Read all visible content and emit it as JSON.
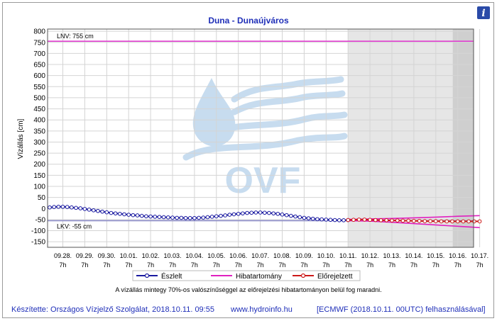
{
  "chart_data": {
    "type": "line",
    "title": "Duna - Dunaújváros",
    "ylabel": "Vízállás [cm]",
    "ylim": [
      -175,
      810
    ],
    "yticks": [
      800,
      750,
      700,
      650,
      600,
      550,
      500,
      450,
      400,
      350,
      300,
      250,
      200,
      150,
      100,
      50,
      0,
      -50,
      -100,
      -150
    ],
    "xticks": [
      {
        "day": "09.28.",
        "hour": "7h"
      },
      {
        "day": "09.29.",
        "hour": "7h"
      },
      {
        "day": "09.30.",
        "hour": "7h"
      },
      {
        "day": "10.01.",
        "hour": "7h"
      },
      {
        "day": "10.02.",
        "hour": "7h"
      },
      {
        "day": "10.03.",
        "hour": "7h"
      },
      {
        "day": "10.04.",
        "hour": "7h"
      },
      {
        "day": "10.05.",
        "hour": "7h"
      },
      {
        "day": "10.06.",
        "hour": "7h"
      },
      {
        "day": "10.07.",
        "hour": "7h"
      },
      {
        "day": "10.08.",
        "hour": "7h"
      },
      {
        "day": "10.09.",
        "hour": "7h"
      },
      {
        "day": "10.10.",
        "hour": "7h"
      },
      {
        "day": "10.11.",
        "hour": "7h"
      },
      {
        "day": "10.12.",
        "hour": "7h"
      },
      {
        "day": "10.13.",
        "hour": "7h"
      },
      {
        "day": "10.14.",
        "hour": "7h"
      },
      {
        "day": "10.15.",
        "hour": "7h"
      },
      {
        "day": "10.16.",
        "hour": "7h"
      },
      {
        "day": "10.17.",
        "hour": "7h"
      }
    ],
    "x_start_day_index": -0.6,
    "forecast_start_index": 13,
    "uncertain_start_index": 18,
    "x_end_index": 19,
    "reference_lines": [
      {
        "label": "LNV: 755 cm",
        "value": 755,
        "color": "#e040d0"
      },
      {
        "label": "LKV: -55 cm",
        "value": -55,
        "color": "#8c8cc8"
      }
    ],
    "series": [
      {
        "name": "Észlelt",
        "color": "#1a1aa0",
        "x": [
          -0.6,
          -0.4,
          -0.2,
          0,
          0.2,
          0.4,
          0.6,
          0.8,
          1,
          1.2,
          1.4,
          1.6,
          1.8,
          2,
          2.2,
          2.4,
          2.6,
          2.8,
          3,
          3.2,
          3.4,
          3.6,
          3.8,
          4,
          4.2,
          4.4,
          4.6,
          4.8,
          5,
          5.2,
          5.4,
          5.6,
          5.8,
          6,
          6.2,
          6.4,
          6.6,
          6.8,
          7,
          7.2,
          7.4,
          7.6,
          7.8,
          8,
          8.2,
          8.4,
          8.6,
          8.8,
          9,
          9.2,
          9.4,
          9.6,
          9.8,
          10,
          10.2,
          10.4,
          10.6,
          10.8,
          11,
          11.2,
          11.4,
          11.6,
          11.8,
          12,
          12.2,
          12.4,
          12.6,
          12.8,
          13
        ],
        "y": [
          5,
          7,
          8,
          8,
          7,
          5,
          3,
          1,
          -2,
          -5,
          -8,
          -11,
          -14,
          -17,
          -20,
          -22,
          -24,
          -26,
          -28,
          -30,
          -31,
          -33,
          -35,
          -36,
          -37,
          -38,
          -39,
          -40,
          -41,
          -42,
          -42,
          -43,
          -43,
          -43,
          -42,
          -41,
          -39,
          -37,
          -35,
          -33,
          -31,
          -28,
          -26,
          -24,
          -22,
          -20,
          -19,
          -18,
          -18,
          -19,
          -20,
          -22,
          -24,
          -27,
          -30,
          -33,
          -36,
          -39,
          -42,
          -44,
          -46,
          -48,
          -49,
          -50,
          -51,
          -52,
          -53,
          -53,
          -52
        ]
      },
      {
        "name": "Hibatartomány",
        "color": "#e020c0",
        "x": [
          13,
          14,
          15,
          16,
          17,
          18,
          19
        ],
        "upper": [
          -49,
          -47,
          -45,
          -42,
          -39,
          -35,
          -32
        ],
        "lower": [
          -55,
          -57,
          -62,
          -68,
          -74,
          -80,
          -86
        ]
      },
      {
        "name": "Előrejelzett",
        "color": "#cc1818",
        "x": [
          13,
          13.25,
          13.5,
          13.75,
          14,
          14.25,
          14.5,
          14.75,
          15,
          15.25,
          15.5,
          15.75,
          16,
          16.25,
          16.5,
          16.75,
          17,
          17.25,
          17.5,
          17.75,
          18,
          18.25,
          18.5,
          18.75,
          19
        ],
        "y": [
          -52,
          -51,
          -50,
          -50,
          -51,
          -52,
          -53,
          -53,
          -54,
          -54,
          -55,
          -55,
          -56,
          -56,
          -57,
          -57,
          -57,
          -58,
          -58,
          -58,
          -58,
          -58,
          -58,
          -58,
          -58
        ]
      }
    ],
    "legend_position": "bottom",
    "note": "A vízállás mintegy 70%-os valószínűséggel az előrejelzési hibatartományon belül fog maradni."
  },
  "watermark": "OVF",
  "info_icon": "info-icon",
  "footer": {
    "author": "Készítette: Országos Vízjelző Szolgálat, 2018.10.11. 09:55",
    "url": "www.hydroinfo.hu",
    "source": "[ECMWF (2018.10.11. 00UTC) felhasználásával]"
  },
  "colors": {
    "plot_bg": "#ffffff",
    "forecast_bg": "#e6e6e6",
    "uncertain_bg": "#cfcfcf",
    "title": "#1f2fb8",
    "grid": "#d4d4d4",
    "watermark": "#c7dcef"
  }
}
